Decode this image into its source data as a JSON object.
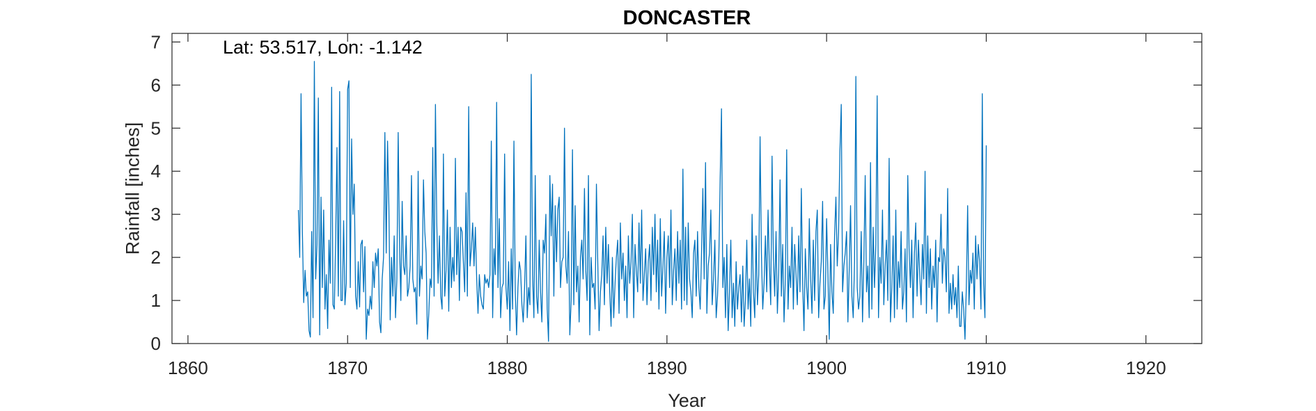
{
  "chart_data": {
    "type": "line",
    "title": "DONCASTER",
    "xlabel": "Year",
    "ylabel": "Rainfall [inches]",
    "annotation": "Lat: 53.517, Lon: -1.142",
    "xlim": [
      1859,
      1923.5
    ],
    "ylim": [
      0,
      7.2
    ],
    "xticks": [
      1860,
      1870,
      1880,
      1890,
      1900,
      1910,
      1920
    ],
    "yticks": [
      0,
      1,
      2,
      3,
      4,
      5,
      6,
      7
    ],
    "grid": false,
    "line_color": "#0072BD",
    "series": [
      {
        "x_start": 1866.917,
        "x_step": 0.0833333,
        "values": [
          3.1,
          2.0,
          5.8,
          2.6,
          0.95,
          1.7,
          1.1,
          1.2,
          0.3,
          0.15,
          2.6,
          0.6,
          6.55,
          1.5,
          2.3,
          5.7,
          0.2,
          3.4,
          1.3,
          3.1,
          0.8,
          1.6,
          0.35,
          2.4,
          1.4,
          5.95,
          0.9,
          0.8,
          2.4,
          4.55,
          1.1,
          5.85,
          1.0,
          1.0,
          2.85,
          0.9,
          1.4,
          5.9,
          6.1,
          1.3,
          4.75,
          3.0,
          3.7,
          1.1,
          0.8,
          1.9,
          0.85,
          2.3,
          2.4,
          1.2,
          2.25,
          0.1,
          0.8,
          0.65,
          1.1,
          0.8,
          1.9,
          1.3,
          2.1,
          1.8,
          2.2,
          0.5,
          0.25,
          1.5,
          2.0,
          4.9,
          2.1,
          4.7,
          3.2,
          0.55,
          2.0,
          1.1,
          2.5,
          0.6,
          1.5,
          4.9,
          2.3,
          1.0,
          3.3,
          1.8,
          1.6,
          2.5,
          1.1,
          1.3,
          1.8,
          3.9,
          1.5,
          1.2,
          1.3,
          0.45,
          4.0,
          1.1,
          1.8,
          1.5,
          3.8,
          2.6,
          2.1,
          0.1,
          0.7,
          1.5,
          1.3,
          4.55,
          1.1,
          5.55,
          2.8,
          1.4,
          2.5,
          1.1,
          0.8,
          4.4,
          1.1,
          1.7,
          3.1,
          0.75,
          2.7,
          1.3,
          2.0,
          1.45,
          4.3,
          1.6,
          2.7,
          1.0,
          2.7,
          2.6,
          1.9,
          1.2,
          3.5,
          1.1,
          5.5,
          1.8,
          2.2,
          2.8,
          1.8,
          2.7,
          1.5,
          0.7,
          1.6,
          1.1,
          0.9,
          0.8,
          1.6,
          1.4,
          1.5,
          1.3,
          1.6,
          4.7,
          0.6,
          2.2,
          1.6,
          5.6,
          1.3,
          2.9,
          0.6,
          1.3,
          1.4,
          4.4,
          1.3,
          0.8,
          1.9,
          0.3,
          2.2,
          0.8,
          4.7,
          1.2,
          0.2,
          1.3,
          1.9,
          1.7,
          0.9,
          0.5,
          1.3,
          2.5,
          0.6,
          1.3,
          0.9,
          6.25,
          1.6,
          0.6,
          3.9,
          1.1,
          0.7,
          2.4,
          1.2,
          0.5,
          2.4,
          2.1,
          3.0,
          0.8,
          0.05,
          3.9,
          2.5,
          3.7,
          1.1,
          3.2,
          1.9,
          3.1,
          3.4,
          1.3,
          1.9,
          2.0,
          5.0,
          1.8,
          1.4,
          2.6,
          0.2,
          1.0,
          4.5,
          0.9,
          3.2,
          1.2,
          1.8,
          0.5,
          2.0,
          2.4,
          1.5,
          3.6,
          1.7,
          1.0,
          3.9,
          0.2,
          2.0,
          1.3,
          1.4,
          0.8,
          3.7,
          1.9,
          0.3,
          1.2,
          1.6,
          2.5,
          0.9,
          2.7,
          1.4,
          2.3,
          1.2,
          0.4,
          2.0,
          0.6,
          1.4,
          2.0,
          2.4,
          0.7,
          2.8,
          1.5,
          2.1,
          1.0,
          1.8,
          0.6,
          2.5,
          1.4,
          1.9,
          3.0,
          0.6,
          2.3,
          1.7,
          1.2,
          2.8,
          1.4,
          3.1,
          1.0,
          1.6,
          2.2,
          0.9,
          1.9,
          2.3,
          1.0,
          2.7,
          1.6,
          3.0,
          1.2,
          2.4,
          0.8,
          2.9,
          1.1,
          1.8,
          2.6,
          0.7,
          2.0,
          2.5,
          1.3,
          3.1,
          0.9,
          1.7,
          2.2,
          1.0,
          2.6,
          1.4,
          2.4,
          0.8,
          4.05,
          1.0,
          2.7,
          0.9,
          2.8,
          1.5,
          1.2,
          0.6,
          2.1,
          2.4,
          1.1,
          2.6,
          1.3,
          0.8,
          2.1,
          3.6,
          1.5,
          4.2,
          0.7,
          1.8,
          2.1,
          3.1,
          0.9,
          1.5,
          2.4,
          0.6,
          1.1,
          2.0,
          3.8,
          5.45,
          1.3,
          2.0,
          0.6,
          2.3,
          0.3,
          1.2,
          2.4,
          0.6,
          1.4,
          0.4,
          1.9,
          0.8,
          1.3,
          1.6,
          0.5,
          1.8,
          0.4,
          1.0,
          2.4,
          0.8,
          1.5,
          0.4,
          3.0,
          1.2,
          0.6,
          2.5,
          0.9,
          1.6,
          4.8,
          2.1,
          0.8,
          1.4,
          2.5,
          1.2,
          3.1,
          1.8,
          0.9,
          4.35,
          2.0,
          1.1,
          2.6,
          0.7,
          1.6,
          3.8,
          1.1,
          2.3,
          0.5,
          1.5,
          4.5,
          0.8,
          1.8,
          1.3,
          2.7,
          0.8,
          2.3,
          1.6,
          0.9,
          2.5,
          1.2,
          3.6,
          1.4,
          0.3,
          2.2,
          1.3,
          0.8,
          2.9,
          1.5,
          0.7,
          2.4,
          1.0,
          2.6,
          3.1,
          0.6,
          1.4,
          1.9,
          3.3,
          0.8,
          1.1,
          2.9,
          1.6,
          0.1,
          2.3,
          1.2,
          0.7,
          2.5,
          3.4,
          1.8,
          2.6,
          4.45,
          5.55,
          1.2,
          1.8,
          2.1,
          2.6,
          0.5,
          1.7,
          3.2,
          1.1,
          0.6,
          1.9,
          6.2,
          1.3,
          0.8,
          1.1,
          2.6,
          0.5,
          1.9,
          3.9,
          1.2,
          1.8,
          0.6,
          4.2,
          0.8,
          2.7,
          1.3,
          2.3,
          5.75,
          0.6,
          2.0,
          1.4,
          3.1,
          0.9,
          1.8,
          2.4,
          1.0,
          4.3,
          0.5,
          1.3,
          2.5,
          0.6,
          3.1,
          0.8,
          1.9,
          1.3,
          2.6,
          0.8,
          1.2,
          2.2,
          0.5,
          3.9,
          2.2,
          1.3,
          2.4,
          0.6,
          2.1,
          2.8,
          1.1,
          2.4,
          1.6,
          0.9,
          2.3,
          1.5,
          4.0,
          0.7,
          2.5,
          1.3,
          2.2,
          0.8,
          1.8,
          1.3,
          2.4,
          0.5,
          2.0,
          1.9,
          3.0,
          1.4,
          2.2,
          2.0,
          1.2,
          3.6,
          0.7,
          1.4,
          0.8,
          1.6,
          0.9,
          1.3,
          0.6,
          1.8,
          0.4,
          0.4,
          1.2,
          0.8,
          0.1,
          1.3,
          3.2,
          0.9,
          1.7,
          1.4,
          2.1,
          0.8,
          2.5,
          1.5,
          2.3,
          1.9,
          0.8,
          5.8,
          1.4,
          0.6,
          4.6
        ]
      }
    ]
  }
}
